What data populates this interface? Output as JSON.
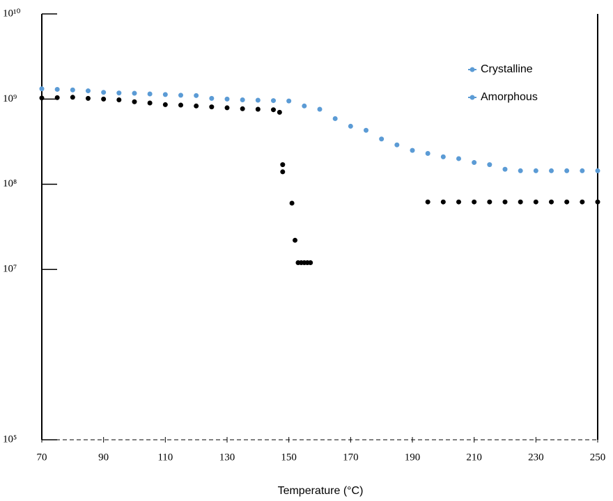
{
  "chart_data": {
    "type": "scatter",
    "x_label": "Temperature (°C)",
    "xlim": [
      70,
      250
    ],
    "xticks": [
      70,
      90,
      110,
      130,
      150,
      170,
      190,
      210,
      230,
      250
    ],
    "ylim": [
      100000,
      10000000000
    ],
    "yticks": [
      {
        "value": 10000000000,
        "label": "10¹⁰"
      },
      {
        "value": 1000000000,
        "label": "10⁹"
      },
      {
        "value": 100000000,
        "label": "10⁸"
      },
      {
        "value": 10000000,
        "label": "10⁷"
      },
      {
        "value": 100000,
        "label": "10⁵"
      }
    ],
    "log_y": true,
    "legend": "top-right",
    "series": [
      {
        "name": "Crystalline",
        "color": "#5b9bd5",
        "legend_color": "#5b9bd5",
        "x": [
          70,
          75,
          80,
          85,
          90,
          95,
          100,
          105,
          110,
          115,
          120,
          125,
          130,
          135,
          140,
          145,
          150,
          155,
          160,
          165,
          170,
          175,
          180,
          185,
          190,
          195,
          200,
          205,
          210,
          215,
          220,
          225,
          230,
          235,
          240,
          245,
          250
        ],
        "values": [
          1320000000,
          1300000000,
          1280000000,
          1250000000,
          1200000000,
          1180000000,
          1170000000,
          1150000000,
          1130000000,
          1110000000,
          1100000000,
          1020000000,
          1000000000,
          980000000,
          970000000,
          960000000,
          950000000,
          830000000,
          760000000,
          590000000,
          480000000,
          430000000,
          340000000,
          290000000,
          250000000,
          230000000,
          210000000,
          200000000,
          180000000,
          170000000,
          150000000,
          144000000,
          144000000,
          144000000,
          144000000,
          144000000,
          144000000
        ]
      },
      {
        "name": "Amorphous",
        "color": "#000000",
        "legend_color": "#5b9bd5",
        "x": [
          70,
          75,
          80,
          85,
          90,
          95,
          100,
          105,
          110,
          115,
          120,
          125,
          130,
          135,
          140,
          145,
          147,
          148,
          148,
          151,
          152,
          153,
          154,
          155,
          156,
          157,
          195,
          200,
          205,
          210,
          215,
          220,
          225,
          230,
          235,
          240,
          245,
          250
        ],
        "values": [
          1030000000,
          1040000000,
          1050000000,
          1020000000,
          1000000000,
          980000000,
          930000000,
          900000000,
          860000000,
          850000000,
          830000000,
          810000000,
          790000000,
          770000000,
          760000000,
          750000000,
          700000000,
          170000000,
          140000000,
          60000000,
          22000000,
          12000000,
          12000000,
          12000000,
          12000000,
          12000000,
          62000000,
          62000000,
          62000000,
          62000000,
          62000000,
          62000000,
          62000000,
          62000000,
          62000000,
          62000000,
          62000000,
          62000000
        ]
      }
    ]
  }
}
